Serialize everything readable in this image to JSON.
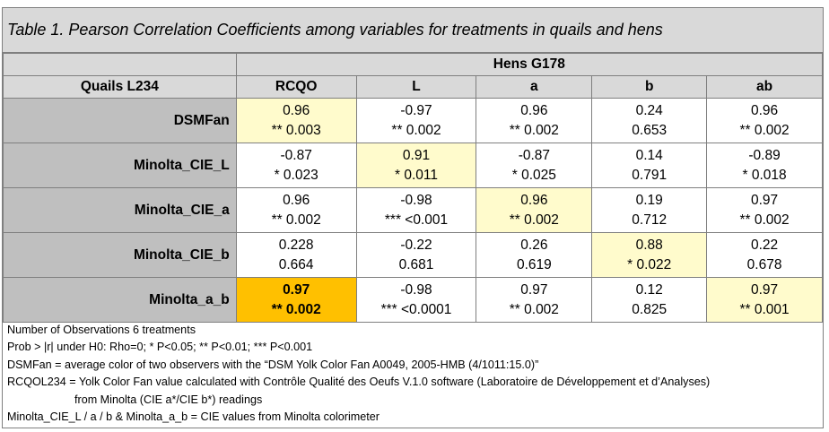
{
  "title": "Table 1. Pearson Correlation Coefficients among variables for treatments in quails and hens",
  "header": {
    "group_label": "Hens G178",
    "row_header": "Quails L234",
    "columns": [
      "RCQO",
      "L",
      "a",
      "b",
      "ab"
    ]
  },
  "rows": [
    {
      "label": "DSMFan",
      "cells": [
        [
          "0.96",
          "** 0.003"
        ],
        [
          "-0.97",
          "** 0.002"
        ],
        [
          "0.96",
          "** 0.002"
        ],
        [
          "0.24",
          "0.653"
        ],
        [
          "0.96",
          "** 0.002"
        ]
      ]
    },
    {
      "label": "Minolta_CIE_L",
      "cells": [
        [
          "-0.87",
          "* 0.023"
        ],
        [
          "0.91",
          "* 0.011"
        ],
        [
          "-0.87",
          "* 0.025"
        ],
        [
          "0.14",
          "0.791"
        ],
        [
          "-0.89",
          "* 0.018"
        ]
      ]
    },
    {
      "label": "Minolta_CIE_a",
      "cells": [
        [
          "0.96",
          "** 0.002"
        ],
        [
          "-0.98",
          "*** <0.001"
        ],
        [
          "0.96",
          "** 0.002"
        ],
        [
          "0.19",
          "0.712"
        ],
        [
          "0.97",
          "** 0.002"
        ]
      ]
    },
    {
      "label": "Minolta_CIE_b",
      "cells": [
        [
          "0.228",
          "0.664"
        ],
        [
          "-0.22",
          "0.681"
        ],
        [
          "0.26",
          "0.619"
        ],
        [
          "0.88",
          "* 0.022"
        ],
        [
          "0.22",
          "0.678"
        ]
      ]
    },
    {
      "label": "Minolta_a_b",
      "cells": [
        [
          "0.97",
          "** 0.002"
        ],
        [
          "-0.98",
          "*** <0.0001"
        ],
        [
          "0.97",
          "** 0.002"
        ],
        [
          "0.12",
          "0.825"
        ],
        [
          "0.97",
          "** 0.001"
        ]
      ]
    }
  ],
  "notes": {
    "n_obs": "Number of Observations 6 treatments",
    "prob": "Prob > |r| under H0: Rho=0; * P<0.05; ** P<0.01; *** P<0.001",
    "dsmfan": "DSMFan = average color of two observers with the “DSM Yolk Color Fan A0049, 2005-HMB (4/1011:15.0)”",
    "rcqo_1": "RCQOL234 = Yolk Color Fan value calculated with Contrôle Qualité des Oeufs V.1.0 software (Laboratoire de Développement et d’Analyses)",
    "rcqo_2": "from Minolta (CIE a*/CIE b*) readings",
    "minolta": "Minolta_CIE_L / a / b & Minolta_a_b = CIE values from Minolta colorimeter"
  },
  "colors": {
    "header_gray": "#d9d9d9",
    "label_gray": "#bfbfbf",
    "highlight_yellow": "#fffbcc",
    "highlight_orange": "#ffc000"
  }
}
